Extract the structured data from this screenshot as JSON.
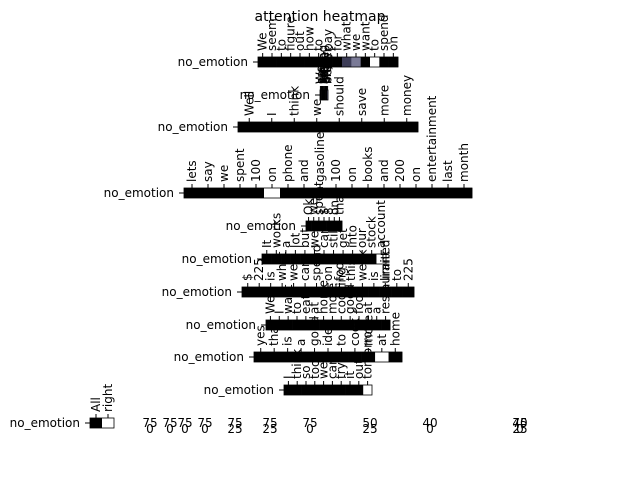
{
  "chart_data": {
    "type": "heatmap",
    "title": "attention heatmap",
    "row_label": "no_emotion",
    "colors": {
      "high": "#000000",
      "mid_dark": "#3d3d57",
      "mid": "#7a7a96",
      "low": "#ffffff"
    },
    "rows": [
      {
        "label": "no_emotion",
        "tokens": [
          "We",
          "seem",
          "to",
          "figure",
          "out",
          "how",
          "to",
          "pay",
          "for",
          "what",
          "we",
          "want",
          "to",
          "spend",
          "on"
        ],
        "weights": [
          1,
          1,
          1,
          1,
          1,
          1,
          1,
          1,
          1,
          0.7,
          0.45,
          1,
          0,
          1,
          1
        ]
      },
      {
        "label": "no_emotion",
        "tokens": [
          "Well",
          "I",
          "think",
          "we",
          "should",
          "save",
          "more",
          "money"
        ],
        "weights": [
          1,
          1,
          1,
          1,
          1,
          1,
          1,
          1
        ]
      },
      {
        "label": "no_emotion",
        "tokens": [
          "We",
          "save",
          "by",
          "saying",
          "we",
          "retire",
          "and",
          "enjoy",
          "life",
          "better"
        ],
        "weights": [
          1,
          1,
          1,
          1,
          1,
          1,
          1,
          1,
          1,
          0.6
        ]
      },
      {
        "label": "no_emotion",
        "tokens": [
          "lets",
          "say",
          "we",
          "spent",
          "100",
          "on",
          "phone",
          "and",
          "gasoline",
          "100",
          "on",
          "books",
          "and",
          "200",
          "on",
          "entertainment",
          "last",
          "month"
        ],
        "weights": [
          1,
          1,
          1,
          1,
          1,
          0,
          1,
          1,
          1,
          1,
          1,
          1,
          1,
          1,
          1,
          1,
          1,
          1
        ]
      },
      {
        "label": "no_emotion",
        "tokens": [
          "Ok",
          "we",
          "spent",
          "$",
          "8",
          "on",
          "that"
        ],
        "weights": [
          1,
          1,
          1,
          1,
          1,
          1,
          1
        ]
      },
      {
        "label": "no_emotion",
        "tokens": [
          "It",
          "works",
          "a",
          "lot",
          "but",
          "we",
          "can",
          "still",
          "get",
          "into",
          "our",
          "stock",
          "account"
        ],
        "weights": [
          1,
          1,
          1,
          1,
          1,
          1,
          1,
          1,
          1,
          1,
          1,
          1,
          0
        ]
      },
      {
        "label": "no_emotion",
        "tokens": [
          "$",
          "225",
          "is",
          "what",
          "we",
          "can",
          "spend",
          "on",
          "food",
          "this",
          "week",
          "is",
          "limited",
          "to",
          "225"
        ],
        "weights": [
          1,
          1,
          1,
          1,
          1,
          1,
          1,
          1,
          1,
          1,
          1,
          1,
          1,
          1,
          1
        ]
      },
      {
        "label": "no_emotion",
        "tokens": [
          "Well",
          "I",
          "want",
          "to",
          "eat",
          "at",
          "home",
          "more",
          "cooking",
          "good",
          "food",
          "at",
          "a",
          "restaurant"
        ],
        "weights": [
          1,
          1,
          1,
          1,
          1,
          1,
          1,
          1,
          1,
          1,
          1,
          1,
          1,
          1
        ]
      },
      {
        "label": "no_emotion",
        "tokens": [
          "yes",
          "that",
          "is",
          "a",
          "good",
          "idea",
          "to",
          "cook",
          "more",
          "at",
          "home"
        ],
        "weights": [
          1,
          1,
          1,
          1,
          1,
          1,
          1,
          1,
          1,
          0,
          1
        ]
      },
      {
        "label": "no_emotion",
        "tokens": [
          "I",
          "think",
          "so",
          "too",
          "we",
          "can",
          "try",
          "it",
          "out",
          "tomorrow"
        ],
        "weights": [
          1,
          1,
          1,
          1,
          1,
          1,
          1,
          1,
          1,
          0
        ]
      },
      {
        "label": "no_emotion",
        "tokens": [
          "All",
          "right"
        ],
        "weights": [
          1,
          0
        ]
      }
    ],
    "bottom_tick_labels": [
      "75",
      "75",
      "75",
      "75",
      "75",
      "75",
      "75",
      "50",
      "40",
      "75",
      "40"
    ],
    "bottom_tick_labels_lower": [
      "0",
      "0",
      "0",
      "0",
      "25",
      "25",
      "0",
      "25",
      "0",
      "25",
      "0"
    ]
  }
}
